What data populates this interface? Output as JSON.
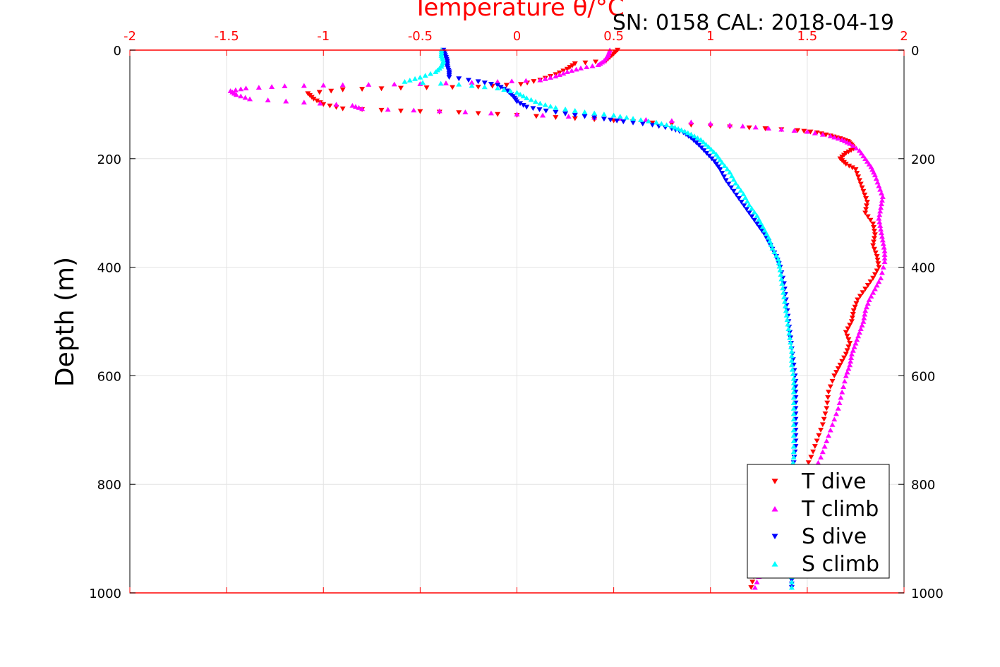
{
  "chart_data": {
    "type": "scatter",
    "top_axis_label": "Temperature θ/°C",
    "info": "SN: 0158  CAL: 2018-04-19",
    "ylabel": "Depth (m)",
    "xlim": [
      -2,
      2
    ],
    "ylim": [
      0,
      1000
    ],
    "y_inverted": true,
    "grid": true,
    "legend_position": "bottom-right",
    "x_ticks": [
      "-2",
      "-1.5",
      "-1",
      "-0.5",
      "0",
      "0.5",
      "1",
      "1.5",
      "2"
    ],
    "y_ticks": [
      "0",
      "200",
      "400",
      "600",
      "800",
      "1000"
    ],
    "series": [
      {
        "name": "T dive",
        "color": "#ff0000",
        "marker": "triangle-down",
        "points": [
          [
            0.52,
            0
          ],
          [
            0.49,
            10
          ],
          [
            0.46,
            20
          ],
          [
            0.3,
            25
          ],
          [
            0.26,
            35
          ],
          [
            0.2,
            45
          ],
          [
            0.12,
            55
          ],
          [
            0.02,
            63
          ],
          [
            -0.2,
            68
          ],
          [
            -0.6,
            70
          ],
          [
            -0.9,
            73
          ],
          [
            -1.08,
            80
          ],
          [
            -1.05,
            90
          ],
          [
            -1.0,
            100
          ],
          [
            -0.9,
            108
          ],
          [
            -0.6,
            112
          ],
          [
            -0.3,
            115
          ],
          [
            0.0,
            120
          ],
          [
            0.3,
            126
          ],
          [
            0.6,
            132
          ],
          [
            0.9,
            138
          ],
          [
            1.2,
            143
          ],
          [
            1.45,
            148
          ],
          [
            1.55,
            152
          ],
          [
            1.62,
            158
          ],
          [
            1.67,
            163
          ],
          [
            1.71,
            168
          ],
          [
            1.73,
            175
          ],
          [
            1.74,
            182
          ],
          [
            1.7,
            190
          ],
          [
            1.67,
            200
          ],
          [
            1.7,
            210
          ],
          [
            1.75,
            220
          ],
          [
            1.77,
            240
          ],
          [
            1.79,
            260
          ],
          [
            1.81,
            280
          ],
          [
            1.8,
            300
          ],
          [
            1.84,
            320
          ],
          [
            1.85,
            340
          ],
          [
            1.84,
            360
          ],
          [
            1.86,
            380
          ],
          [
            1.87,
            400
          ],
          [
            1.84,
            420
          ],
          [
            1.8,
            440
          ],
          [
            1.76,
            460
          ],
          [
            1.74,
            480
          ],
          [
            1.73,
            500
          ],
          [
            1.7,
            520
          ],
          [
            1.72,
            540
          ],
          [
            1.7,
            560
          ],
          [
            1.67,
            580
          ],
          [
            1.64,
            600
          ],
          [
            1.61,
            630
          ],
          [
            1.6,
            660
          ],
          [
            1.58,
            690
          ],
          [
            1.55,
            720
          ],
          [
            1.52,
            750
          ],
          [
            1.48,
            780
          ],
          [
            1.43,
            810
          ],
          [
            1.38,
            840
          ],
          [
            1.34,
            870
          ],
          [
            1.3,
            900
          ],
          [
            1.26,
            930
          ],
          [
            1.23,
            960
          ],
          [
            1.21,
            990
          ]
        ]
      },
      {
        "name": "T climb",
        "color": "#ff00ff",
        "marker": "triangle-up",
        "points": [
          [
            0.48,
            0
          ],
          [
            0.47,
            10
          ],
          [
            0.45,
            20
          ],
          [
            0.42,
            27
          ],
          [
            0.33,
            33
          ],
          [
            0.26,
            40
          ],
          [
            0.2,
            48
          ],
          [
            0.12,
            55
          ],
          [
            -0.1,
            58
          ],
          [
            -0.5,
            62
          ],
          [
            -0.9,
            64
          ],
          [
            -1.2,
            66
          ],
          [
            -1.4,
            70
          ],
          [
            -1.48,
            75
          ],
          [
            -1.45,
            82
          ],
          [
            -1.38,
            90
          ],
          [
            -1.1,
            96
          ],
          [
            -0.85,
            102
          ],
          [
            -0.8,
            108
          ],
          [
            -0.4,
            112
          ],
          [
            0.0,
            118
          ],
          [
            0.4,
            124
          ],
          [
            0.8,
            130
          ],
          [
            1.1,
            138
          ],
          [
            1.3,
            144
          ],
          [
            1.5,
            150
          ],
          [
            1.62,
            158
          ],
          [
            1.68,
            165
          ],
          [
            1.72,
            172
          ],
          [
            1.77,
            185
          ],
          [
            1.8,
            200
          ],
          [
            1.83,
            215
          ],
          [
            1.85,
            230
          ],
          [
            1.87,
            250
          ],
          [
            1.89,
            270
          ],
          [
            1.88,
            290
          ],
          [
            1.87,
            310
          ],
          [
            1.88,
            330
          ],
          [
            1.89,
            350
          ],
          [
            1.9,
            370
          ],
          [
            1.9,
            390
          ],
          [
            1.88,
            420
          ],
          [
            1.85,
            440
          ],
          [
            1.82,
            460
          ],
          [
            1.8,
            480
          ],
          [
            1.79,
            500
          ],
          [
            1.77,
            520
          ],
          [
            1.75,
            540
          ],
          [
            1.73,
            560
          ],
          [
            1.72,
            580
          ],
          [
            1.7,
            600
          ],
          [
            1.68,
            630
          ],
          [
            1.66,
            660
          ],
          [
            1.63,
            690
          ],
          [
            1.6,
            720
          ],
          [
            1.57,
            750
          ],
          [
            1.53,
            780
          ],
          [
            1.48,
            810
          ],
          [
            1.43,
            840
          ],
          [
            1.38,
            870
          ],
          [
            1.33,
            900
          ],
          [
            1.29,
            930
          ],
          [
            1.26,
            960
          ],
          [
            1.23,
            990
          ]
        ]
      },
      {
        "name": "S dive",
        "color": "#0000ff",
        "marker": "triangle-down",
        "points": [
          [
            -0.38,
            0
          ],
          [
            -0.37,
            10
          ],
          [
            -0.36,
            20
          ],
          [
            -0.36,
            30
          ],
          [
            -0.35,
            40
          ],
          [
            -0.35,
            50
          ],
          [
            -0.2,
            58
          ],
          [
            -0.1,
            65
          ],
          [
            -0.05,
            75
          ],
          [
            -0.02,
            85
          ],
          [
            0.0,
            95
          ],
          [
            0.05,
            105
          ],
          [
            0.15,
            112
          ],
          [
            0.3,
            120
          ],
          [
            0.45,
            127
          ],
          [
            0.55,
            132
          ],
          [
            0.7,
            138
          ],
          [
            0.8,
            145
          ],
          [
            0.86,
            152
          ],
          [
            0.9,
            162
          ],
          [
            0.94,
            175
          ],
          [
            0.98,
            190
          ],
          [
            1.02,
            205
          ],
          [
            1.05,
            220
          ],
          [
            1.08,
            240
          ],
          [
            1.12,
            260
          ],
          [
            1.16,
            280
          ],
          [
            1.2,
            300
          ],
          [
            1.24,
            320
          ],
          [
            1.28,
            340
          ],
          [
            1.31,
            360
          ],
          [
            1.34,
            380
          ],
          [
            1.36,
            400
          ],
          [
            1.38,
            430
          ],
          [
            1.39,
            460
          ],
          [
            1.4,
            490
          ],
          [
            1.41,
            520
          ],
          [
            1.42,
            550
          ],
          [
            1.43,
            580
          ],
          [
            1.44,
            610
          ],
          [
            1.44,
            640
          ],
          [
            1.44,
            670
          ],
          [
            1.44,
            700
          ],
          [
            1.44,
            730
          ],
          [
            1.43,
            760
          ],
          [
            1.43,
            790
          ],
          [
            1.43,
            820
          ],
          [
            1.42,
            850
          ],
          [
            1.42,
            880
          ],
          [
            1.42,
            910
          ],
          [
            1.42,
            940
          ],
          [
            1.42,
            970
          ],
          [
            1.42,
            990
          ]
        ]
      },
      {
        "name": "S climb",
        "color": "#00ffff",
        "marker": "triangle-up",
        "points": [
          [
            -0.39,
            0
          ],
          [
            -0.39,
            10
          ],
          [
            -0.38,
            20
          ],
          [
            -0.39,
            30
          ],
          [
            -0.42,
            40
          ],
          [
            -0.5,
            50
          ],
          [
            -0.58,
            58
          ],
          [
            -0.3,
            63
          ],
          [
            -0.1,
            70
          ],
          [
            0.0,
            78
          ],
          [
            0.05,
            88
          ],
          [
            0.12,
            98
          ],
          [
            0.2,
            106
          ],
          [
            0.35,
            114
          ],
          [
            0.5,
            120
          ],
          [
            0.6,
            126
          ],
          [
            0.72,
            133
          ],
          [
            0.8,
            140
          ],
          [
            0.85,
            147
          ],
          [
            0.9,
            155
          ],
          [
            0.95,
            165
          ],
          [
            0.99,
            178
          ],
          [
            1.03,
            192
          ],
          [
            1.06,
            207
          ],
          [
            1.1,
            225
          ],
          [
            1.13,
            245
          ],
          [
            1.17,
            265
          ],
          [
            1.2,
            285
          ],
          [
            1.24,
            305
          ],
          [
            1.27,
            325
          ],
          [
            1.3,
            345
          ],
          [
            1.32,
            365
          ],
          [
            1.35,
            385
          ],
          [
            1.36,
            405
          ],
          [
            1.37,
            430
          ],
          [
            1.38,
            455
          ],
          [
            1.39,
            480
          ],
          [
            1.4,
            505
          ],
          [
            1.41,
            530
          ],
          [
            1.42,
            555
          ],
          [
            1.42,
            580
          ],
          [
            1.43,
            605
          ],
          [
            1.43,
            630
          ],
          [
            1.43,
            660
          ],
          [
            1.43,
            690
          ],
          [
            1.43,
            720
          ],
          [
            1.43,
            750
          ],
          [
            1.42,
            780
          ],
          [
            1.42,
            810
          ],
          [
            1.42,
            840
          ],
          [
            1.42,
            870
          ],
          [
            1.42,
            900
          ],
          [
            1.42,
            930
          ],
          [
            1.42,
            960
          ],
          [
            1.42,
            990
          ]
        ]
      }
    ]
  }
}
